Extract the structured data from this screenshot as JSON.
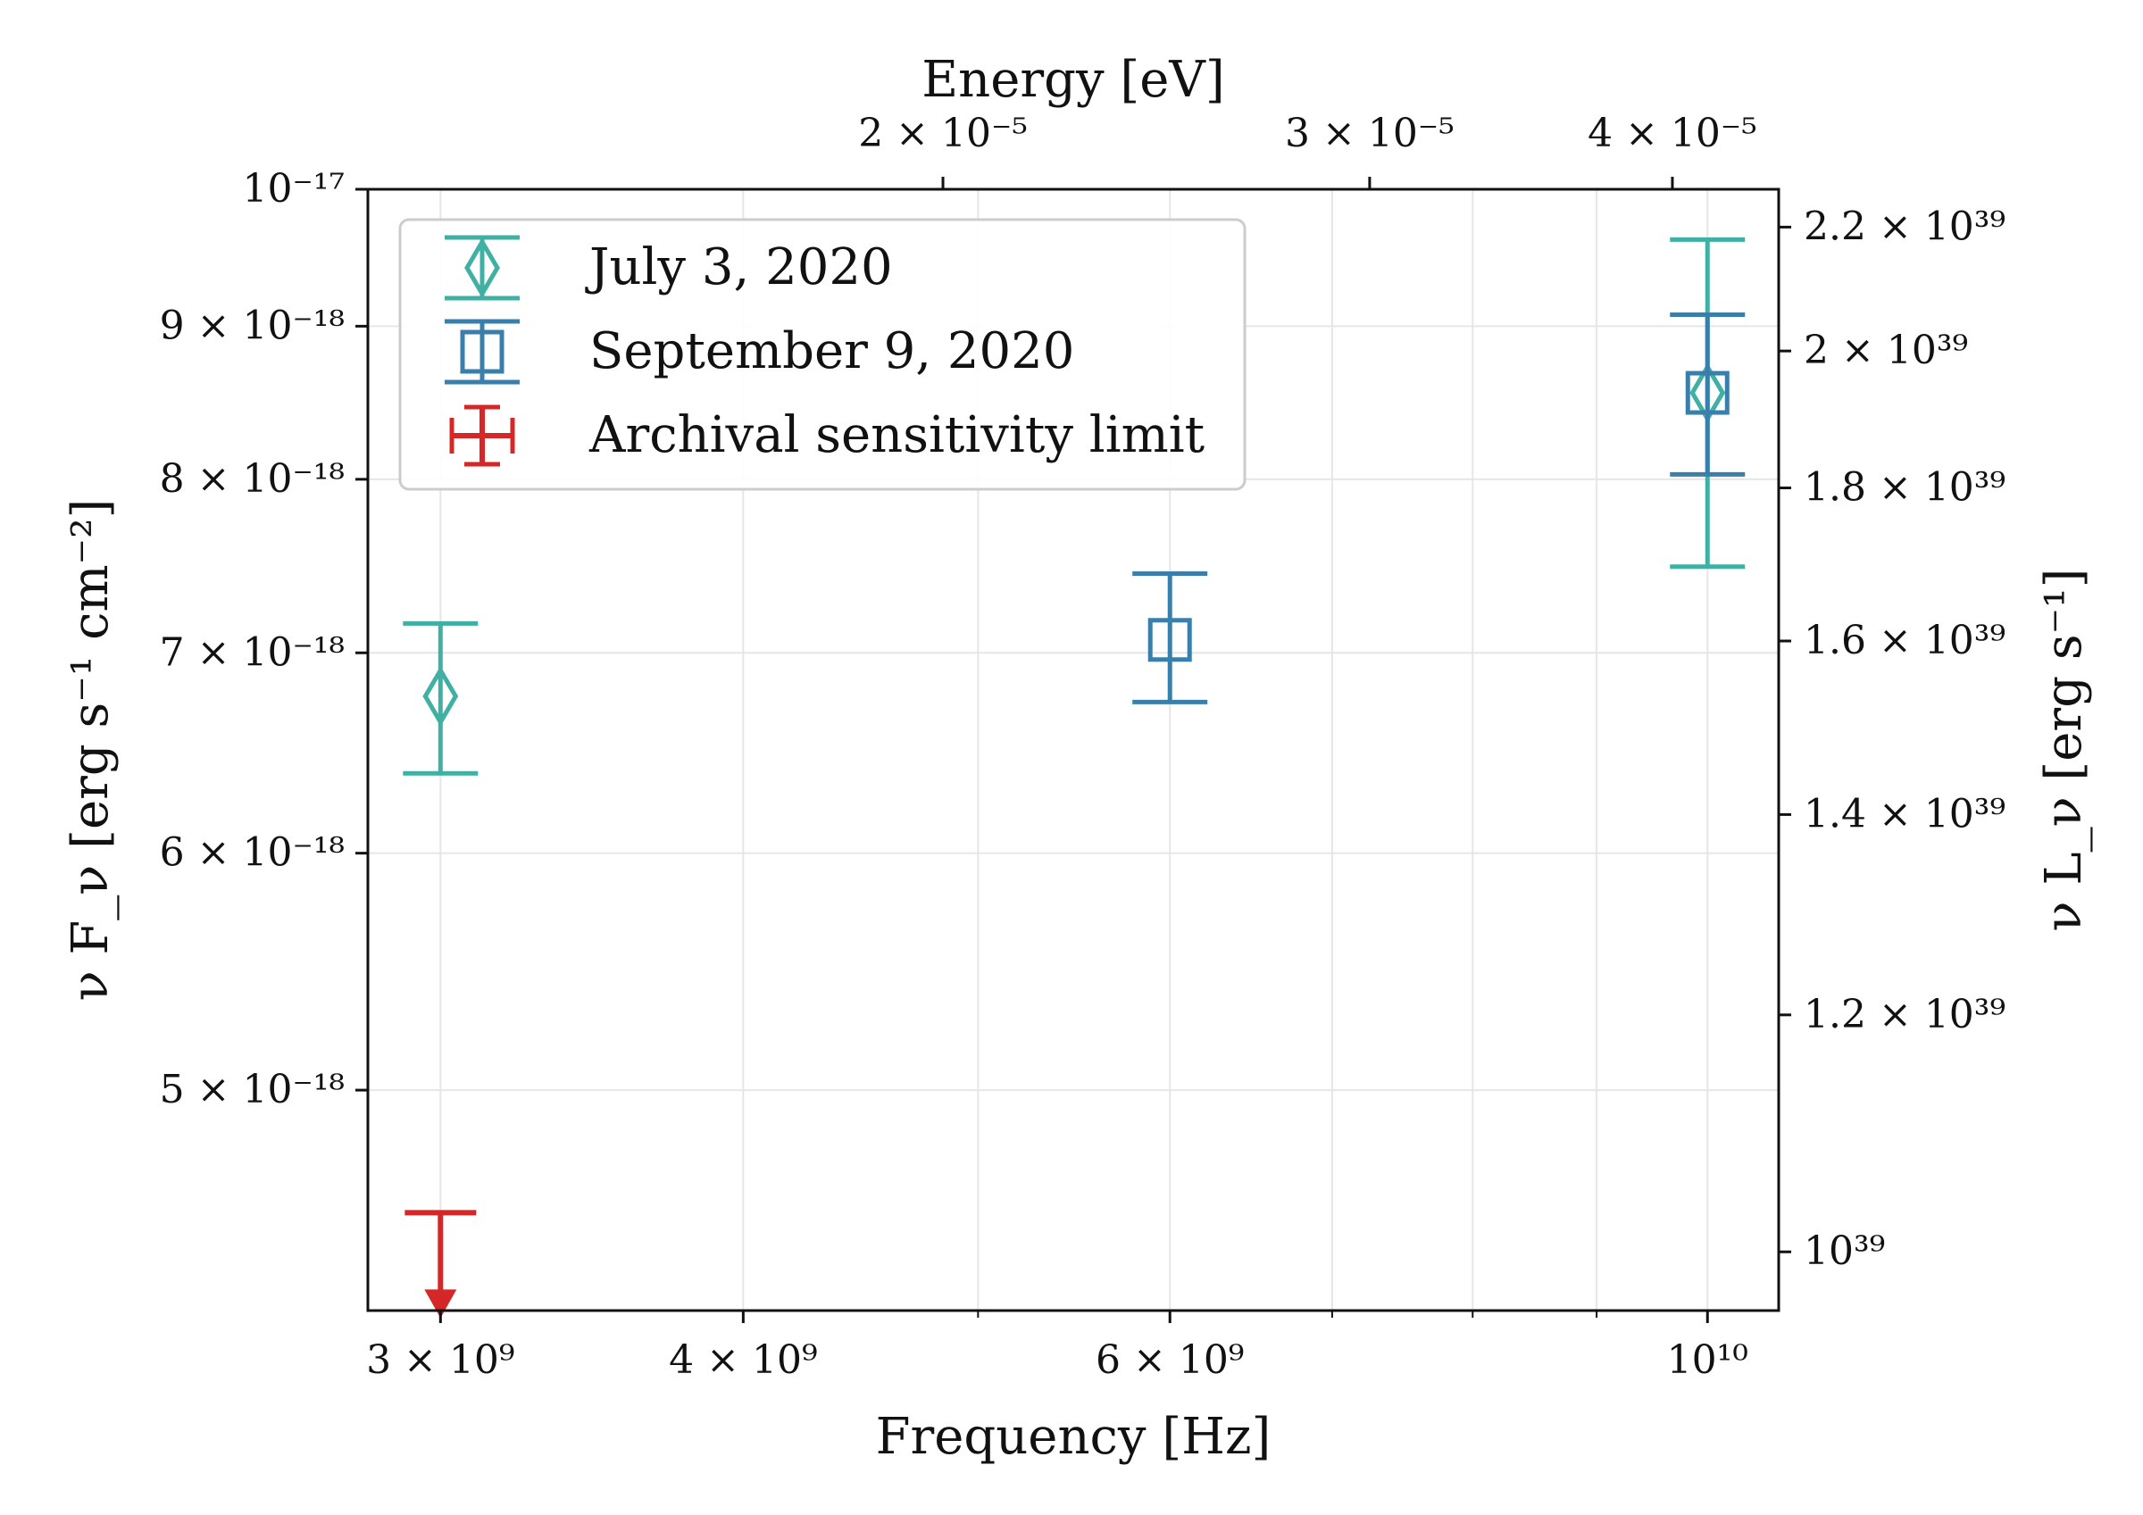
{
  "chart_data": {
    "type": "scatter",
    "xlabel": "Frequency [Hz]",
    "ylabel": "ν F_ν [erg s⁻¹ cm⁻²]",
    "xlabel_top": "Energy [eV]",
    "ylabel_right": "ν L_ν [erg s⁻¹]",
    "x_scale": "log",
    "y_scale": "log",
    "xlim": [
      2800000000.0,
      10700000000.0
    ],
    "ylim": [
      4.22e-18,
      1e-17
    ],
    "grid": true,
    "legend_position": "top-left",
    "x_ticks": [
      {
        "value": 3000000000.0,
        "label": "3 × 10⁹"
      },
      {
        "value": 4000000000.0,
        "label": "4 × 10⁹"
      },
      {
        "value": 6000000000.0,
        "label": "6 × 10⁹"
      },
      {
        "value": 10000000000.0,
        "label": "10¹⁰"
      }
    ],
    "x_minor_ticks": [
      5000000000.0,
      7000000000.0,
      8000000000.0,
      9000000000.0
    ],
    "y_ticks": [
      {
        "value": 1e-17,
        "label": "10⁻¹⁷"
      },
      {
        "value": 9e-18,
        "label": "9 × 10⁻¹⁸"
      },
      {
        "value": 8e-18,
        "label": "8 × 10⁻¹⁸"
      },
      {
        "value": 7e-18,
        "label": "7 × 10⁻¹⁸"
      },
      {
        "value": 6e-18,
        "label": "6 × 10⁻¹⁸"
      },
      {
        "value": 5e-18,
        "label": "5 × 10⁻¹⁸"
      }
    ],
    "top_ticks": [
      {
        "value": 2e-05,
        "label": "2 × 10⁻⁵"
      },
      {
        "value": 3e-05,
        "label": "3 × 10⁻⁵"
      },
      {
        "value": 4e-05,
        "label": "4 × 10⁻⁵"
      }
    ],
    "right_ticks": [
      {
        "value": 2.2e+39,
        "label": "2.2 × 10³⁹"
      },
      {
        "value": 2e+39,
        "label": "2 × 10³⁹"
      },
      {
        "value": 1.8e+39,
        "label": "1.8 × 10³⁹"
      },
      {
        "value": 1.6e+39,
        "label": "1.6 × 10³⁹"
      },
      {
        "value": 1.4e+39,
        "label": "1.4 × 10³⁹"
      },
      {
        "value": 1.2e+39,
        "label": "1.2 × 10³⁹"
      },
      {
        "value": 1e+39,
        "label": "10³⁹"
      }
    ],
    "series": [
      {
        "name": "July 3, 2020",
        "marker": "diamond",
        "color": "#3fb0a3",
        "points": [
          {
            "x": 3000000000.0,
            "y": 6.77e-18,
            "ylow": 6.38e-18,
            "yhigh": 7.16e-18
          },
          {
            "x": 10000000000.0,
            "y": 8.55e-18,
            "ylow": 7.48e-18,
            "yhigh": 9.62e-18
          }
        ]
      },
      {
        "name": "September 9, 2020",
        "marker": "square",
        "color": "#3a7fab",
        "points": [
          {
            "x": 6000000000.0,
            "y": 7.07e-18,
            "ylow": 6.74e-18,
            "yhigh": 7.44e-18
          },
          {
            "x": 10000000000.0,
            "y": 8.55e-18,
            "ylow": 8.03e-18,
            "yhigh": 9.08e-18
          }
        ]
      },
      {
        "name": "Archival sensitivity limit",
        "marker": "upper-limit",
        "color": "#d62728",
        "points": [
          {
            "x": 3000000000.0,
            "y": 4.55e-18
          }
        ]
      }
    ]
  }
}
